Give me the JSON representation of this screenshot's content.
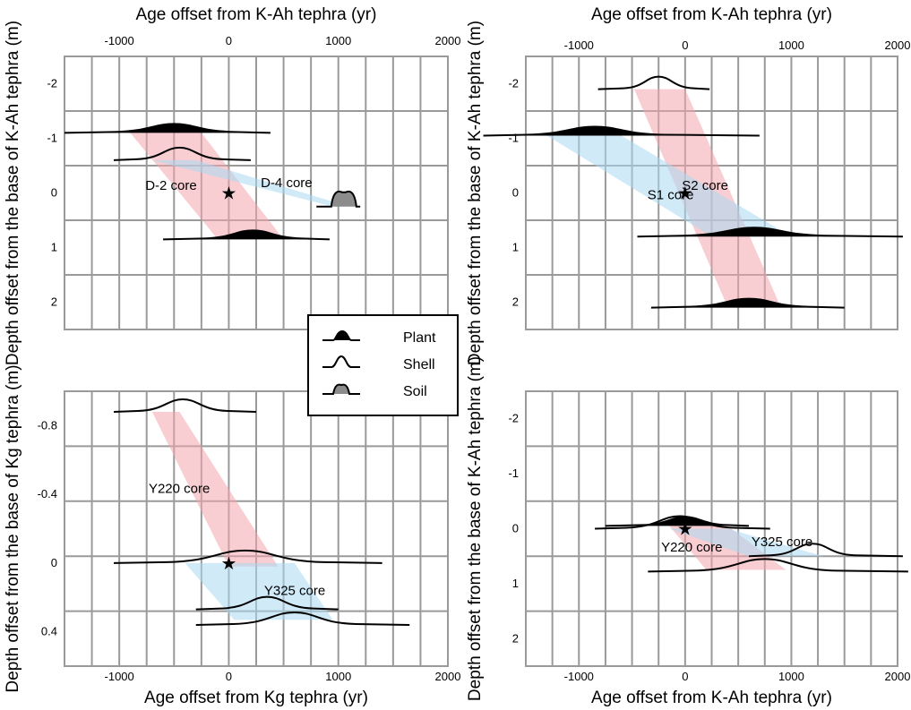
{
  "chart_data": [
    {
      "type": "line",
      "panel": "top-left",
      "title": "",
      "xlabel": "Age offset from K-Ah tephra (yr)",
      "xlabel_position": "top",
      "ylabel": "Depth offset from the base of K-Ah tephra (m)",
      "xlim": [
        -1500,
        2000
      ],
      "ylim": [
        -2.5,
        2.5
      ],
      "y_inverted": true,
      "x_ticks": [
        "-1000",
        "0",
        "1000",
        "2000"
      ],
      "y_ticks": [
        "-2",
        "-1",
        "0",
        "1",
        "2"
      ],
      "grid": true,
      "cores": [
        {
          "name": "D-2 core",
          "band_color": "#f4a6ae",
          "top": {
            "x": [
              -900,
              -250
            ],
            "y": -1.1
          },
          "bottom": {
            "x": [
              -100,
              500
            ],
            "y": 0.85
          }
        },
        {
          "name": "D-4 core",
          "band_color": "#a9d8f2",
          "top": {
            "x": [
              -700,
              -300
            ],
            "y": -0.6
          },
          "bottom": {
            "x": [
              950,
              1100
            ],
            "y": 0.25
          }
        }
      ],
      "distributions": [
        {
          "material": "Plant",
          "depth": -1.1,
          "x_range": [
            -1500,
            380
          ],
          "peak": -500
        },
        {
          "material": "Shell",
          "depth": -0.6,
          "x_range": [
            -1050,
            200
          ],
          "peak": -450
        },
        {
          "material": "Soil",
          "depth": 0.25,
          "x_range": [
            800,
            1200
          ],
          "peak": 1050
        },
        {
          "material": "Plant",
          "depth": 0.85,
          "x_range": [
            -600,
            920
          ],
          "peak": 220
        }
      ],
      "marker": {
        "symbol": "star",
        "x": 0,
        "y": 0
      }
    },
    {
      "type": "line",
      "panel": "top-right",
      "title": "",
      "xlabel": "Age offset from K-Ah tephra (yr)",
      "xlabel_position": "top",
      "ylabel": "Depth offset from the base of K-Ah tephra (m)",
      "xlim": [
        -1500,
        2000
      ],
      "ylim": [
        -2.5,
        2.5
      ],
      "y_inverted": true,
      "x_ticks": [
        "-1000",
        "0",
        "1000",
        "2000"
      ],
      "y_ticks": [
        "-2",
        "-1",
        "0",
        "1",
        "2"
      ],
      "grid": true,
      "cores": [
        {
          "name": "S1 core",
          "band_color": "#f4a6ae",
          "top": {
            "x": [
              -480,
              0
            ],
            "y": -1.9
          },
          "bottom": {
            "x": [
              380,
              880
            ],
            "y": 2.0
          }
        },
        {
          "name": "S2 core",
          "band_color": "#a9d8f2",
          "top": {
            "x": [
              -1300,
              -600
            ],
            "y": -1.05
          },
          "bottom": {
            "x": [
              250,
              1000
            ],
            "y": 0.8
          }
        }
      ],
      "distributions": [
        {
          "material": "Shell",
          "depth": -1.9,
          "x_range": [
            -820,
            230
          ],
          "peak": -250
        },
        {
          "material": "Plant",
          "depth": -1.05,
          "x_range": [
            -1900,
            700
          ],
          "peak": -850
        },
        {
          "material": "Plant",
          "depth": 0.8,
          "x_range": [
            -450,
            2050
          ],
          "peak": 650
        },
        {
          "material": "Plant",
          "depth": 2.1,
          "x_range": [
            -320,
            1500
          ],
          "peak": 600
        }
      ],
      "marker": {
        "symbol": "star",
        "x": 0,
        "y": 0
      }
    },
    {
      "type": "line",
      "panel": "bottom-left",
      "title": "",
      "xlabel": "Age offset from Kg tephra (yr)",
      "xlabel_position": "bottom",
      "ylabel": "Depth offset from the base of Kg tephra (m)",
      "xlim": [
        -1500,
        2000
      ],
      "ylim": [
        -1.0,
        0.6
      ],
      "y_inverted": true,
      "x_ticks": [
        "-1000",
        "0",
        "1000",
        "2000"
      ],
      "y_ticks": [
        "-0.8",
        "-0.4",
        "0",
        "0.4"
      ],
      "grid": true,
      "cores": [
        {
          "name": "Y220 core",
          "band_color": "#f4a6ae",
          "top": {
            "x": [
              -700,
              -450
            ],
            "y": -0.88
          },
          "bottom": {
            "x": [
              0,
              450
            ],
            "y": 0.02
          }
        },
        {
          "name": "Y325 core",
          "band_color": "#a9d8f2",
          "top": {
            "x": [
              -400,
              600
            ],
            "y": 0.0
          },
          "bottom": {
            "x": [
              50,
              950
            ],
            "y": 0.33
          }
        }
      ],
      "distributions": [
        {
          "material": "Shell",
          "depth": -0.88,
          "x_range": [
            -1050,
            250
          ],
          "peak": -420
        },
        {
          "material": "Shell",
          "depth": 0.0,
          "x_range": [
            -1050,
            1400
          ],
          "peak": 150
        },
        {
          "material": "Shell",
          "depth": 0.27,
          "x_range": [
            -300,
            1000
          ],
          "peak": 350
        },
        {
          "material": "Shell",
          "depth": 0.36,
          "x_range": [
            -300,
            1650
          ],
          "peak": 600
        }
      ],
      "marker": {
        "symbol": "star",
        "x": 0,
        "y": 0
      }
    },
    {
      "type": "line",
      "panel": "bottom-right",
      "title": "",
      "xlabel": "Age offset from K-Ah tephra (yr)",
      "xlabel_position": "bottom",
      "ylabel": "Depth offset from the base of K-Ah tephra (m)",
      "xlim": [
        -1500,
        2000
      ],
      "ylim": [
        -2.5,
        2.5
      ],
      "y_inverted": true,
      "x_ticks": [
        "-1000",
        "0",
        "1000",
        "2000"
      ],
      "y_ticks": [
        "-2",
        "-1",
        "0",
        "1",
        "2"
      ],
      "grid": true,
      "cores": [
        {
          "name": "Y220 core",
          "band_color": "#f4a6ae",
          "top": {
            "x": [
              -150,
              400
            ],
            "y": -0.05
          },
          "bottom": {
            "x": [
              200,
              950
            ],
            "y": 0.75
          }
        },
        {
          "name": "Y325 core",
          "band_color": "#a9d8f2",
          "top": {
            "x": [
              -150,
              400
            ],
            "y": 0.0
          },
          "bottom": {
            "x": [
              600,
              1300
            ],
            "y": 0.5
          }
        }
      ],
      "distributions": [
        {
          "material": "Plant",
          "depth": -0.05,
          "x_range": [
            -750,
            600
          ],
          "peak": 0
        },
        {
          "material": "Shell",
          "depth": 0.0,
          "x_range": [
            -850,
            800
          ],
          "peak": -50
        },
        {
          "material": "Shell",
          "depth": 0.5,
          "x_range": [
            600,
            2050
          ],
          "peak": 1200
        },
        {
          "material": "Shell",
          "depth": 0.78,
          "x_range": [
            -350,
            2100
          ],
          "peak": 750
        }
      ],
      "marker": {
        "symbol": "star",
        "x": 0,
        "y": 0
      }
    }
  ],
  "legend": {
    "placement": "center",
    "items": [
      {
        "label": "Plant",
        "material": "Plant"
      },
      {
        "label": "Shell",
        "material": "Shell"
      },
      {
        "label": "Soil",
        "material": "Soil"
      }
    ]
  },
  "colors": {
    "plant_fill": "#000000",
    "soil_fill": "#8c8c8c",
    "shell_fill": "none",
    "band_pink": "#f4a6ae",
    "band_blue": "#a9d8f2",
    "grid": "#9a9a9a",
    "axis": "#000000"
  },
  "icons": {
    "marker": "star-icon"
  }
}
